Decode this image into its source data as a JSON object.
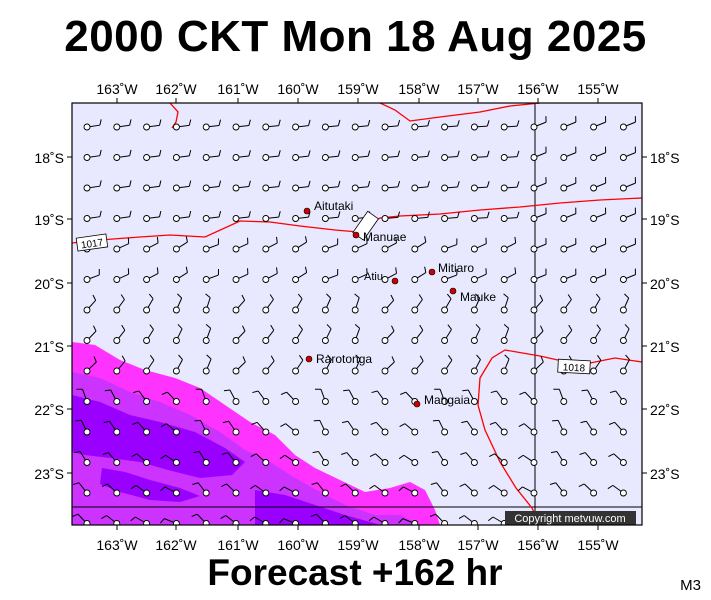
{
  "title": "2000 CKT Mon 18 Aug 2025",
  "footer": "Forecast +162 hr",
  "code": "M3",
  "copyright": "Copyright metvuw.com",
  "lon_labels": [
    "163˚W",
    "162˚W",
    "161˚W",
    "160˚W",
    "159˚W",
    "158˚W",
    "157˚W",
    "156˚W",
    "155˚W"
  ],
  "lat_labels": [
    "18˚S",
    "19˚S",
    "20˚S",
    "21˚S",
    "22˚S",
    "23˚S"
  ],
  "isobars": [
    "1017",
    "1018"
  ],
  "places": [
    {
      "name": "Aitutaki"
    },
    {
      "name": "Manuae"
    },
    {
      "name": "Atiu"
    },
    {
      "name": "Mitiaro"
    },
    {
      "name": "Mauke"
    },
    {
      "name": "Rarotonga"
    },
    {
      "name": "Mangaia"
    }
  ],
  "colors": {
    "ocean": "#e8e8ff",
    "isobar": "#ff0000",
    "rain_light": "#ff33ff",
    "rain_mid": "#cc33ff",
    "rain_heavy": "#9900ff",
    "place_dot": "#cc0000"
  }
}
